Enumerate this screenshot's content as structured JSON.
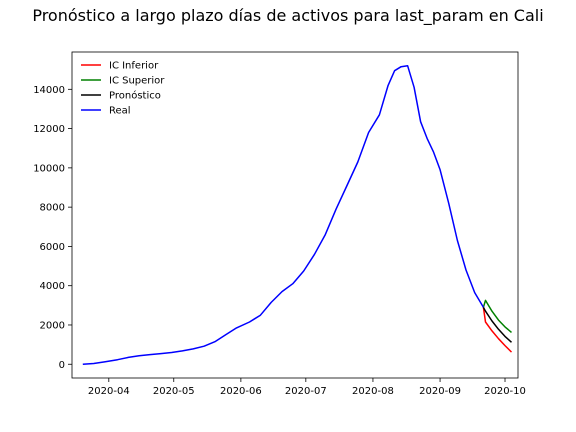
{
  "chart_data": {
    "type": "line",
    "title": "Pronóstico a largo plazo días de activos para last_param en Cali",
    "xlabel": "",
    "ylabel": "",
    "xlim": [
      "2020-03-15",
      "2020-10-07"
    ],
    "ylim": [
      -700,
      15900
    ],
    "x_ticks": [
      "2020-04",
      "2020-05",
      "2020-06",
      "2020-07",
      "2020-08",
      "2020-09",
      "2020-10"
    ],
    "y_ticks": [
      0,
      2000,
      4000,
      6000,
      8000,
      10000,
      12000,
      14000
    ],
    "grid": false,
    "legend_position": "top-left",
    "series": [
      {
        "name": "IC Inferior",
        "color": "#ff0000",
        "points": [
          [
            "2020-09-21",
            2900
          ],
          [
            "2020-09-22",
            2150
          ],
          [
            "2020-09-25",
            1700
          ],
          [
            "2020-09-28",
            1300
          ],
          [
            "2020-10-01",
            950
          ],
          [
            "2020-10-04",
            620
          ]
        ]
      },
      {
        "name": "IC Superior",
        "color": "#008000",
        "points": [
          [
            "2020-09-21",
            2900
          ],
          [
            "2020-09-22",
            3250
          ],
          [
            "2020-09-25",
            2700
          ],
          [
            "2020-09-28",
            2250
          ],
          [
            "2020-10-01",
            1900
          ],
          [
            "2020-10-04",
            1620
          ]
        ]
      },
      {
        "name": "Pronóstico",
        "color": "#000000",
        "points": [
          [
            "2020-09-21",
            2900
          ],
          [
            "2020-09-22",
            2700
          ],
          [
            "2020-09-25",
            2200
          ],
          [
            "2020-09-28",
            1780
          ],
          [
            "2020-10-01",
            1420
          ],
          [
            "2020-10-04",
            1120
          ]
        ]
      },
      {
        "name": "Real",
        "color": "#0000ff",
        "points": [
          [
            "2020-03-20",
            0
          ],
          [
            "2020-03-25",
            40
          ],
          [
            "2020-03-30",
            120
          ],
          [
            "2020-04-05",
            230
          ],
          [
            "2020-04-10",
            350
          ],
          [
            "2020-04-15",
            430
          ],
          [
            "2020-04-20",
            490
          ],
          [
            "2020-04-25",
            540
          ],
          [
            "2020-04-30",
            600
          ],
          [
            "2020-05-05",
            680
          ],
          [
            "2020-05-10",
            780
          ],
          [
            "2020-05-15",
            920
          ],
          [
            "2020-05-20",
            1150
          ],
          [
            "2020-05-25",
            1500
          ],
          [
            "2020-05-30",
            1850
          ],
          [
            "2020-06-05",
            2150
          ],
          [
            "2020-06-10",
            2500
          ],
          [
            "2020-06-15",
            3150
          ],
          [
            "2020-06-20",
            3700
          ],
          [
            "2020-06-25",
            4100
          ],
          [
            "2020-06-30",
            4750
          ],
          [
            "2020-07-05",
            5600
          ],
          [
            "2020-07-10",
            6600
          ],
          [
            "2020-07-15",
            7900
          ],
          [
            "2020-07-20",
            9100
          ],
          [
            "2020-07-25",
            10300
          ],
          [
            "2020-07-30",
            11800
          ],
          [
            "2020-08-04",
            12700
          ],
          [
            "2020-08-08",
            14200
          ],
          [
            "2020-08-11",
            14950
          ],
          [
            "2020-08-14",
            15150
          ],
          [
            "2020-08-17",
            15200
          ],
          [
            "2020-08-20",
            14100
          ],
          [
            "2020-08-23",
            12350
          ],
          [
            "2020-08-26",
            11500
          ],
          [
            "2020-08-29",
            10800
          ],
          [
            "2020-09-01",
            9900
          ],
          [
            "2020-09-05",
            8200
          ],
          [
            "2020-09-09",
            6300
          ],
          [
            "2020-09-13",
            4800
          ],
          [
            "2020-09-17",
            3650
          ],
          [
            "2020-09-21",
            2900
          ]
        ]
      }
    ]
  }
}
